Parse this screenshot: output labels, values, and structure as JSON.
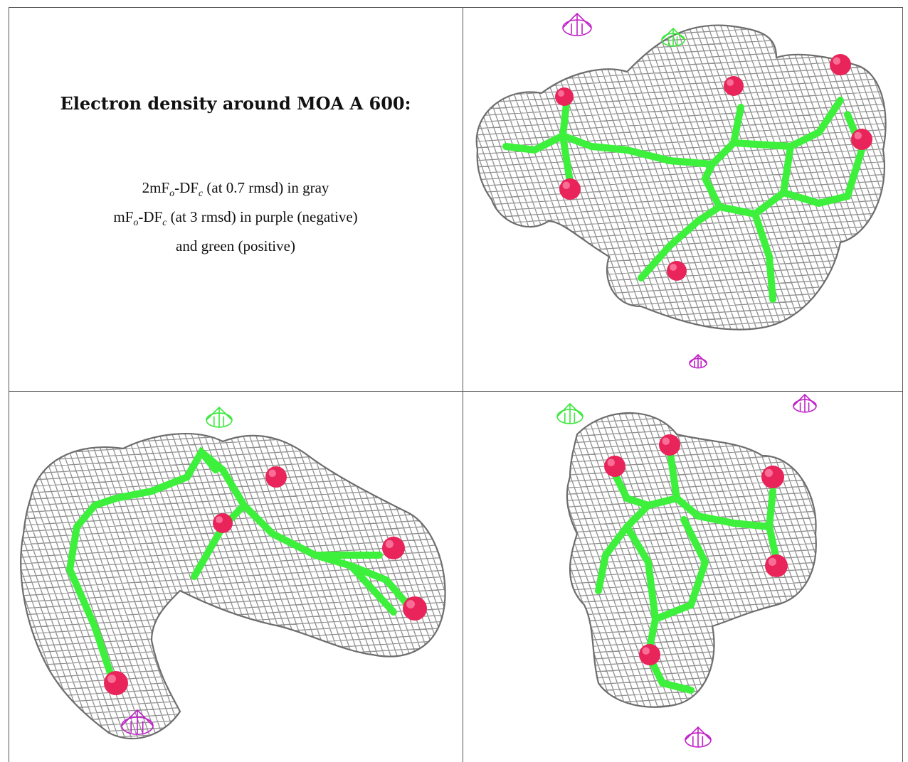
{
  "caption": {
    "title": "Electron density around MOA A 600:",
    "line1_prefix": "2mF",
    "line1_sub_o": "o",
    "line1_mid": "-DF",
    "line1_sub_c": "c",
    "line1_rest": " (at 0.7 rmsd) in gray",
    "line2_prefix": "mF",
    "line2_sub_o": "o",
    "line2_mid": "-DF",
    "line2_sub_c": "c",
    "line2_rest": " (at 3 rmsd) in purple (negative)",
    "line3": "and green (positive)"
  },
  "colors": {
    "mesh_gray": "#8a8a8a",
    "carbon_green": "#3cf03c",
    "oxygen_red": "#e8245a",
    "negative_purple": "#c020c8",
    "positive_green": "#3ce83c"
  },
  "views": [
    {
      "name": "view-top-right"
    },
    {
      "name": "view-bottom-left"
    },
    {
      "name": "view-bottom-right"
    }
  ]
}
